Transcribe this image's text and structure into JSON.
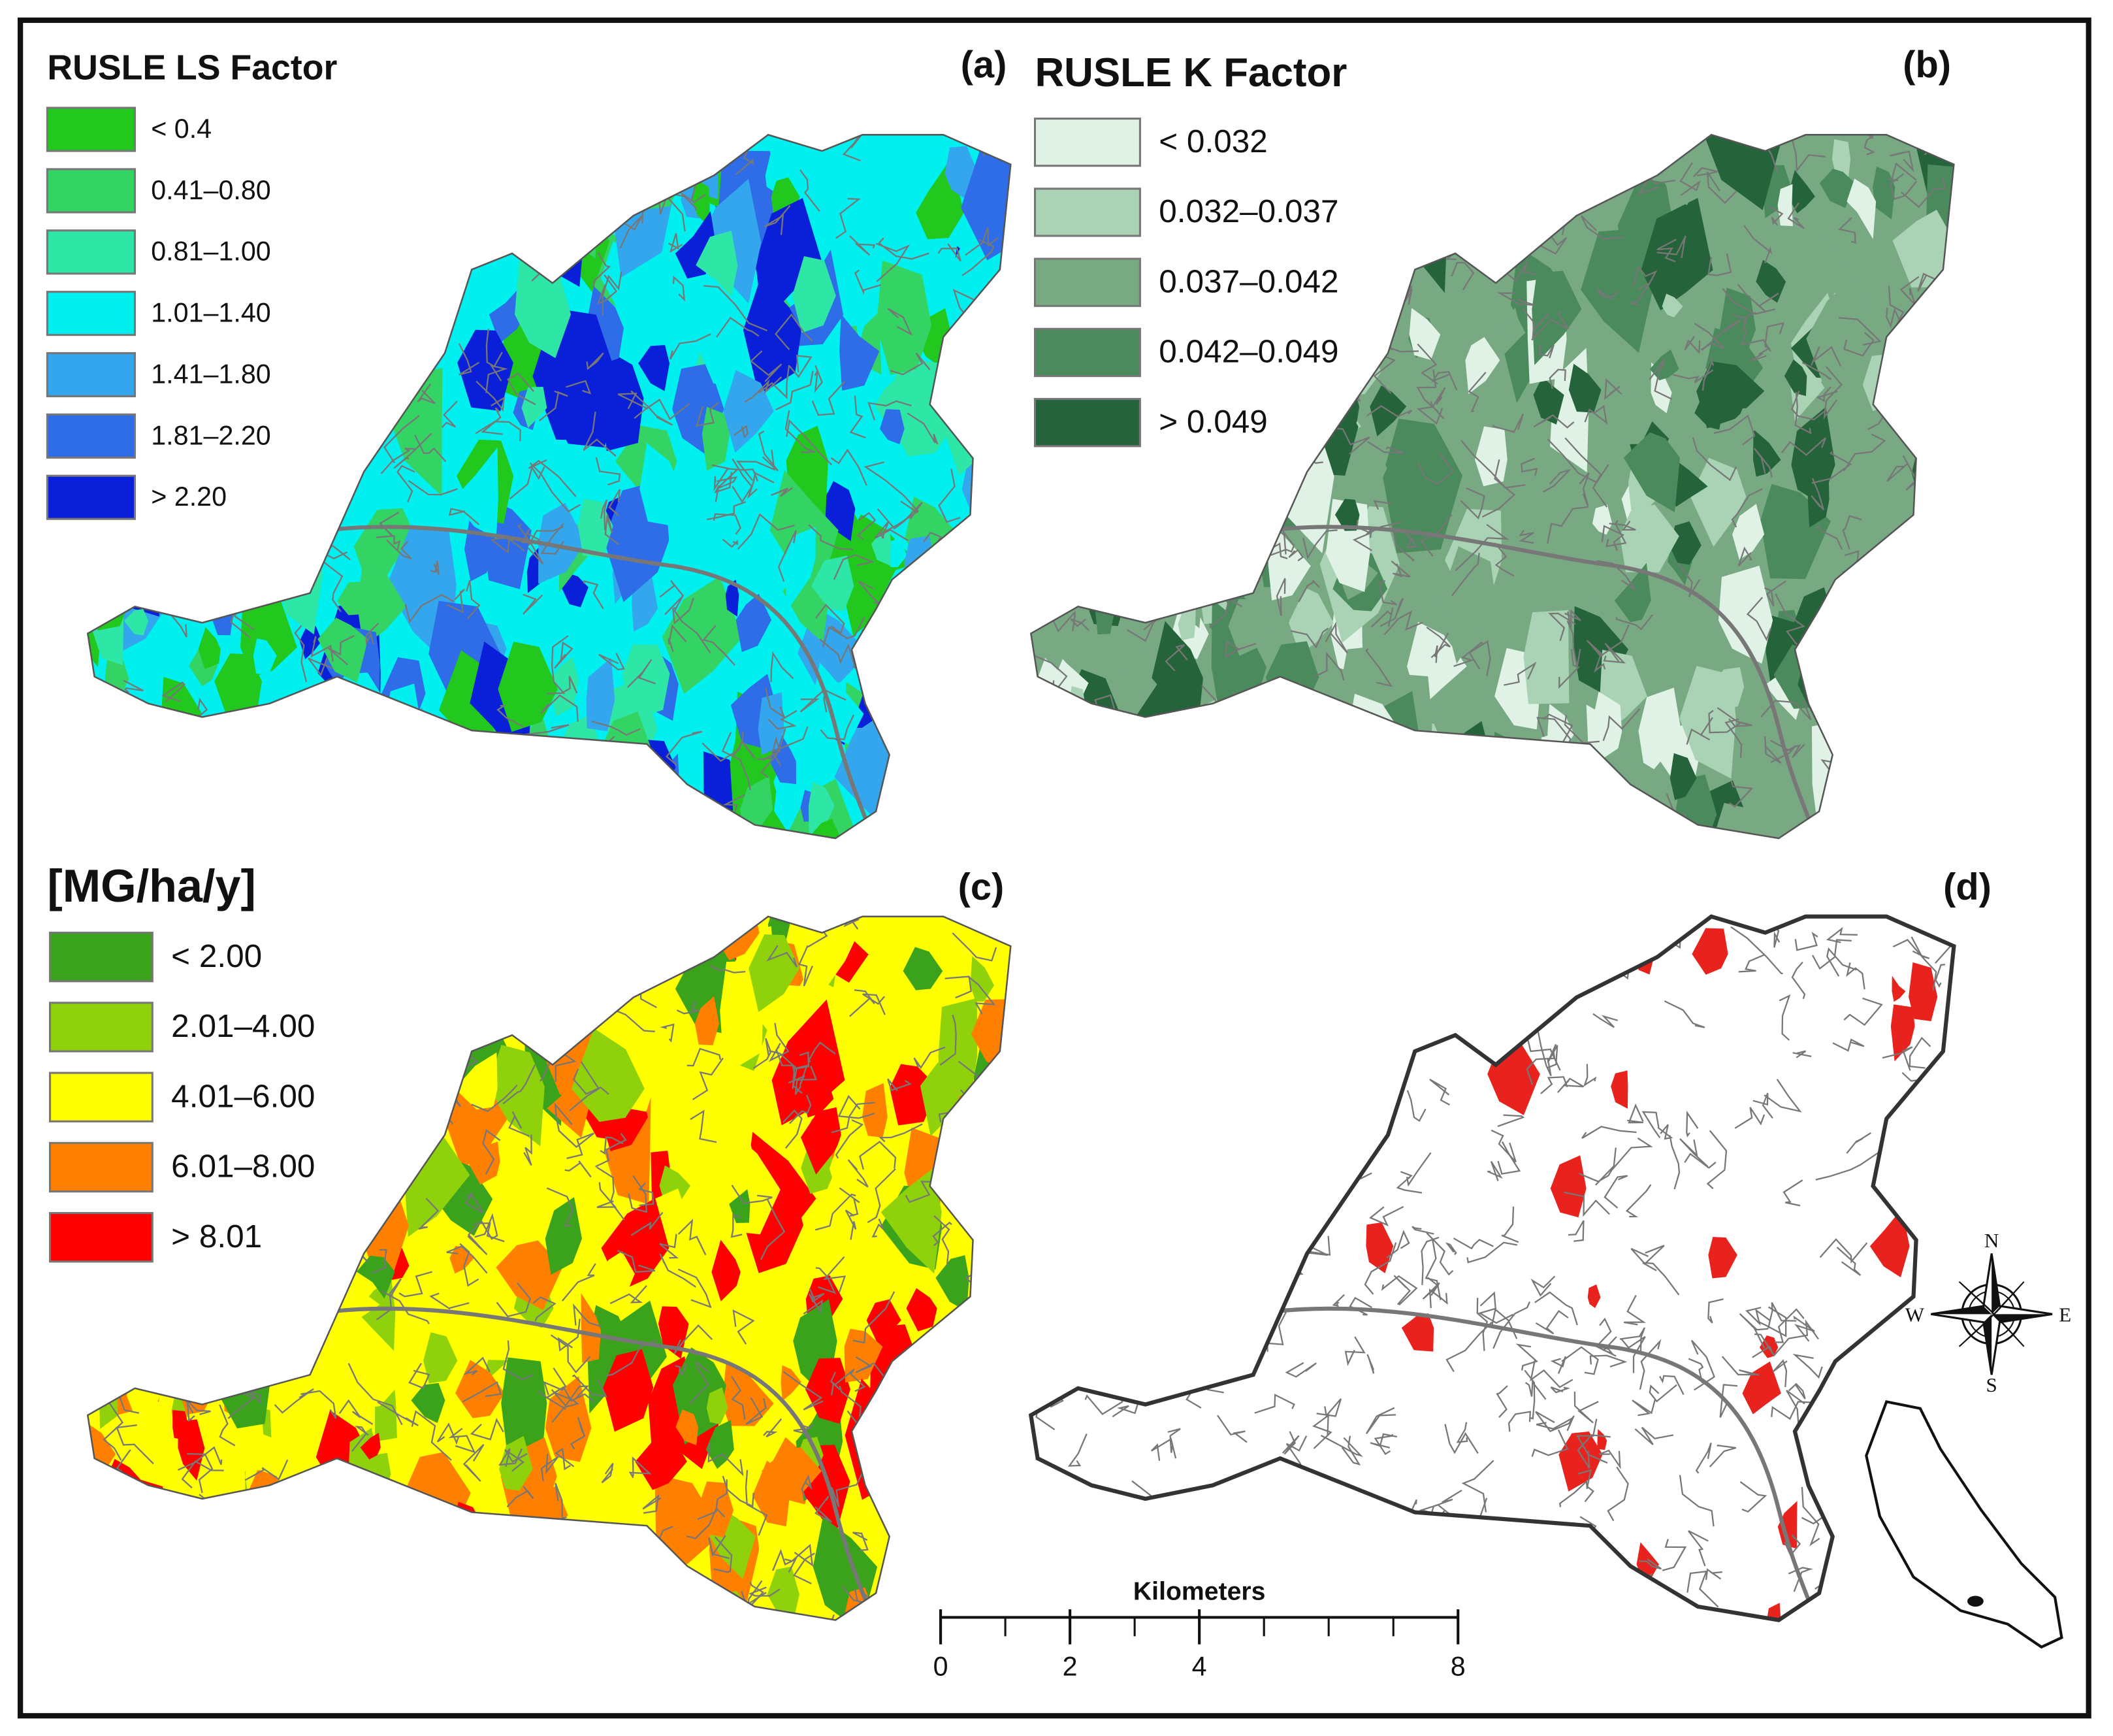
{
  "panels": [
    {
      "label": "(a)",
      "legend_title": "RUSLE LS Factor",
      "legend": [
        {
          "label": "< 0.4",
          "color": "#22c81e"
        },
        {
          "label": "0.41–0.80",
          "color": "#33d463"
        },
        {
          "label": "0.81–1.00",
          "color": "#2ee6a6"
        },
        {
          "label": "1.01–1.40",
          "color": "#00f0f0"
        },
        {
          "label": "1.41–1.80",
          "color": "#33a6ee"
        },
        {
          "label": "1.81–2.20",
          "color": "#2e6ce8"
        },
        {
          "label": "> 2.20",
          "color": "#0a1fd8"
        }
      ]
    },
    {
      "label": "(b)",
      "legend_title": "RUSLE K Factor",
      "legend": [
        {
          "label": "< 0.032",
          "color": "#e0f2e6"
        },
        {
          "label": "0.032–0.037",
          "color": "#a9d3b4"
        },
        {
          "label": "0.037–0.042",
          "color": "#78a983"
        },
        {
          "label": "0.042–0.049",
          "color": "#4b8a5c"
        },
        {
          "label": "> 0.049",
          "color": "#25643a"
        }
      ]
    },
    {
      "label": "(c)",
      "legend_title": "[MG/ha/y]",
      "legend": [
        {
          "label": "< 2.00",
          "color": "#3aa31b"
        },
        {
          "label": "2.01–4.00",
          "color": "#8fd20c"
        },
        {
          "label": "4.01–6.00",
          "color": "#ffff00"
        },
        {
          "label": "6.01–8.00",
          "color": "#ff8000"
        },
        {
          "label": "> 8.01",
          "color": "#ff0000"
        }
      ]
    },
    {
      "label": "(d)",
      "colors": [
        "#ffffff",
        "#e8231e"
      ]
    }
  ],
  "scale_bar": {
    "title": "Kilometers",
    "range": [
      0,
      8
    ],
    "ticks": [
      0,
      2,
      4,
      8
    ]
  },
  "compass": {
    "north": "N",
    "south": "S",
    "east": "E",
    "west": "W"
  }
}
